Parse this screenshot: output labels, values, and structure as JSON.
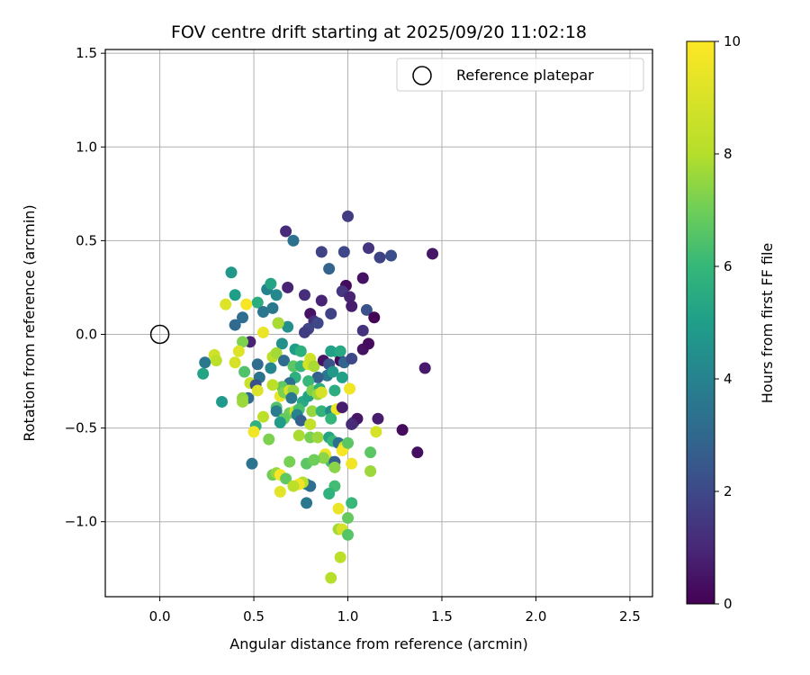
{
  "chart_data": {
    "type": "scatter",
    "title": "FOV centre drift starting at 2025/09/20 11:02:18",
    "xlabel": "Angular distance from reference (arcmin)",
    "ylabel": "Rotation from reference (arcmin)",
    "xlim": [
      -0.29,
      2.62
    ],
    "ylim": [
      -1.4,
      1.52
    ],
    "xticks": [
      0.0,
      0.5,
      1.0,
      1.5,
      2.0,
      2.5
    ],
    "xtick_labels": [
      "0.0",
      "0.5",
      "1.0",
      "1.5",
      "2.0",
      "2.5"
    ],
    "yticks": [
      -1.0,
      -0.5,
      0.0,
      0.5,
      1.0,
      1.5
    ],
    "ytick_labels": [
      "−1.0",
      "−0.5",
      "0.0",
      "0.5",
      "1.0",
      "1.5"
    ],
    "grid": true,
    "legend": {
      "placement": "top-right",
      "entries": [
        "Reference platepar"
      ]
    },
    "reference_point": {
      "x": 0.0,
      "y": 0.0
    },
    "colorbar": {
      "label": "Hours from first FF file",
      "range": [
        0,
        10
      ],
      "ticks": [
        0,
        2,
        4,
        6,
        8,
        10
      ],
      "tick_labels": [
        "0",
        "2",
        "4",
        "6",
        "8",
        "10"
      ],
      "colormap": "viridis"
    },
    "points": [
      [
        1.0,
        0.63,
        1.8
      ],
      [
        0.67,
        0.55,
        1.2
      ],
      [
        0.71,
        0.5,
        3.7
      ],
      [
        0.86,
        0.44,
        2.0
      ],
      [
        0.98,
        0.44,
        2.2
      ],
      [
        1.11,
        0.46,
        1.5
      ],
      [
        1.17,
        0.41,
        2.0
      ],
      [
        1.23,
        0.42,
        2.4
      ],
      [
        1.45,
        0.43,
        0.6
      ],
      [
        0.9,
        0.35,
        3.2
      ],
      [
        1.08,
        0.3,
        0.5
      ],
      [
        0.99,
        0.26,
        0.3
      ],
      [
        0.97,
        0.23,
        1.6
      ],
      [
        1.01,
        0.2,
        1.0
      ],
      [
        0.68,
        0.25,
        1.0
      ],
      [
        0.77,
        0.21,
        1.3
      ],
      [
        0.86,
        0.18,
        1.0
      ],
      [
        1.02,
        0.15,
        0.8
      ],
      [
        1.1,
        0.13,
        2.6
      ],
      [
        1.14,
        0.09,
        0.1
      ],
      [
        0.91,
        0.11,
        2.0
      ],
      [
        0.8,
        0.11,
        0.5
      ],
      [
        0.82,
        0.07,
        1.4
      ],
      [
        0.84,
        0.06,
        2.2
      ],
      [
        0.79,
        0.03,
        2.1
      ],
      [
        0.77,
        0.01,
        1.8
      ],
      [
        1.08,
        0.02,
        1.4
      ],
      [
        0.38,
        0.33,
        5.3
      ],
      [
        0.4,
        0.21,
        5.6
      ],
      [
        0.57,
        0.24,
        4.5
      ],
      [
        0.59,
        0.27,
        5.8
      ],
      [
        0.62,
        0.21,
        4.7
      ],
      [
        0.52,
        0.17,
        6.2
      ],
      [
        0.55,
        0.12,
        3.9
      ],
      [
        0.6,
        0.14,
        4.0
      ],
      [
        0.44,
        0.09,
        3.6
      ],
      [
        0.4,
        0.05,
        3.4
      ],
      [
        0.63,
        0.06,
        4.6
      ],
      [
        0.68,
        0.04,
        5.0
      ],
      [
        0.35,
        0.16,
        9.5
      ],
      [
        0.46,
        0.16,
        9.9
      ],
      [
        0.63,
        0.06,
        8.7
      ],
      [
        0.55,
        0.01,
        9.7
      ],
      [
        0.48,
        -0.04,
        1.0
      ],
      [
        0.44,
        -0.04,
        8.0
      ],
      [
        0.42,
        -0.09,
        9.5
      ],
      [
        0.29,
        -0.11,
        9.3
      ],
      [
        0.3,
        -0.14,
        9.0
      ],
      [
        0.4,
        -0.15,
        9.4
      ],
      [
        0.24,
        -0.15,
        4.0
      ],
      [
        0.23,
        -0.21,
        5.8
      ],
      [
        0.45,
        -0.2,
        7.2
      ],
      [
        0.52,
        -0.16,
        3.5
      ],
      [
        0.59,
        -0.18,
        4.6
      ],
      [
        0.65,
        -0.05,
        5.0
      ],
      [
        0.72,
        -0.08,
        5.5
      ],
      [
        0.75,
        -0.09,
        6.3
      ],
      [
        0.6,
        -0.12,
        9.0
      ],
      [
        0.62,
        -0.1,
        8.6
      ],
      [
        0.66,
        -0.14,
        3.5
      ],
      [
        0.71,
        -0.17,
        7.4
      ],
      [
        0.75,
        -0.17,
        6.6
      ],
      [
        0.79,
        -0.16,
        9.4
      ],
      [
        0.8,
        -0.13,
        9.3
      ],
      [
        0.82,
        -0.17,
        8.7
      ],
      [
        0.87,
        -0.14,
        0.5
      ],
      [
        0.9,
        -0.16,
        2.5
      ],
      [
        0.95,
        -0.1,
        6.5
      ],
      [
        0.96,
        -0.14,
        0.3
      ],
      [
        0.98,
        -0.15,
        3.2
      ],
      [
        1.02,
        -0.13,
        2.2
      ],
      [
        0.91,
        -0.09,
        5.7
      ],
      [
        0.96,
        -0.09,
        6.0
      ],
      [
        1.08,
        -0.08,
        0.5
      ],
      [
        1.11,
        -0.05,
        0.3
      ],
      [
        1.41,
        -0.18,
        0.7
      ],
      [
        0.89,
        -0.22,
        4.0
      ],
      [
        0.92,
        -0.2,
        5.3
      ],
      [
        0.97,
        -0.23,
        5.7
      ],
      [
        0.84,
        -0.23,
        3.0
      ],
      [
        0.79,
        -0.25,
        6.7
      ],
      [
        0.72,
        -0.23,
        6.3
      ],
      [
        0.69,
        -0.26,
        3.7
      ],
      [
        0.65,
        -0.28,
        7.5
      ],
      [
        0.6,
        -0.27,
        9.0
      ],
      [
        0.53,
        -0.23,
        3.8
      ],
      [
        0.48,
        -0.26,
        9.2
      ],
      [
        0.51,
        -0.27,
        2.5
      ],
      [
        0.52,
        -0.3,
        9.5
      ],
      [
        0.64,
        -0.33,
        9.7
      ],
      [
        0.66,
        -0.31,
        8.0
      ],
      [
        0.69,
        -0.3,
        9.4
      ],
      [
        0.71,
        -0.3,
        8.4
      ],
      [
        0.7,
        -0.34,
        4.0
      ],
      [
        0.76,
        -0.36,
        6.0
      ],
      [
        0.79,
        -0.33,
        5.8
      ],
      [
        0.81,
        -0.3,
        8.0
      ],
      [
        0.85,
        -0.29,
        6.2
      ],
      [
        0.84,
        -0.32,
        8.5
      ],
      [
        0.86,
        -0.31,
        9.4
      ],
      [
        0.93,
        -0.3,
        6.2
      ],
      [
        1.01,
        -0.29,
        9.8
      ],
      [
        0.47,
        -0.34,
        3.4
      ],
      [
        0.44,
        -0.34,
        8.3
      ],
      [
        0.44,
        -0.36,
        8.5
      ],
      [
        0.33,
        -0.36,
        5.4
      ],
      [
        0.62,
        -0.39,
        7.2
      ],
      [
        0.62,
        -0.41,
        4.2
      ],
      [
        0.69,
        -0.42,
        7.8
      ],
      [
        0.72,
        -0.41,
        9.2
      ],
      [
        0.74,
        -0.4,
        7.0
      ],
      [
        0.73,
        -0.43,
        4.5
      ],
      [
        0.75,
        -0.46,
        3.0
      ],
      [
        0.81,
        -0.41,
        8.4
      ],
      [
        0.86,
        -0.41,
        6.5
      ],
      [
        0.91,
        -0.41,
        4.8
      ],
      [
        0.94,
        -0.4,
        9.7
      ],
      [
        0.97,
        -0.39,
        0.8
      ],
      [
        0.91,
        -0.45,
        6.6
      ],
      [
        1.03,
        -0.47,
        2.2
      ],
      [
        1.05,
        -0.45,
        0.6
      ],
      [
        1.16,
        -0.45,
        0.8
      ],
      [
        1.29,
        -0.51,
        0.3
      ],
      [
        1.37,
        -0.63,
        0.4
      ],
      [
        1.02,
        -0.48,
        1.2
      ],
      [
        0.66,
        -0.45,
        7.6
      ],
      [
        0.64,
        -0.47,
        5.5
      ],
      [
        0.55,
        -0.44,
        9.0
      ],
      [
        0.51,
        -0.49,
        6.4
      ],
      [
        0.5,
        -0.52,
        9.8
      ],
      [
        0.8,
        -0.48,
        9.1
      ],
      [
        0.74,
        -0.54,
        8.7
      ],
      [
        0.8,
        -0.55,
        7.9
      ],
      [
        0.84,
        -0.55,
        8.5
      ],
      [
        0.9,
        -0.55,
        5.8
      ],
      [
        0.92,
        -0.57,
        6.7
      ],
      [
        0.95,
        -0.58,
        3.6
      ],
      [
        0.98,
        -0.6,
        9.2
      ],
      [
        0.97,
        -0.62,
        9.9
      ],
      [
        1.0,
        -0.58,
        7.4
      ],
      [
        1.15,
        -0.52,
        9.4
      ],
      [
        1.12,
        -0.63,
        7.4
      ],
      [
        0.58,
        -0.56,
        8.0
      ],
      [
        0.91,
        -0.68,
        7.0
      ],
      [
        0.93,
        -0.68,
        3.0
      ],
      [
        0.88,
        -0.64,
        9.7
      ],
      [
        0.87,
        -0.66,
        8.2
      ],
      [
        0.78,
        -0.69,
        7.4
      ],
      [
        0.82,
        -0.67,
        7.8
      ],
      [
        1.02,
        -0.69,
        9.8
      ],
      [
        0.93,
        -0.71,
        8.2
      ],
      [
        0.69,
        -0.68,
        7.9
      ],
      [
        1.12,
        -0.73,
        8.5
      ],
      [
        0.49,
        -0.69,
        3.8
      ],
      [
        0.6,
        -0.75,
        7.8
      ],
      [
        0.62,
        -0.74,
        8.4
      ],
      [
        0.64,
        -0.75,
        9.9
      ],
      [
        0.67,
        -0.77,
        7.5
      ],
      [
        0.78,
        -0.8,
        5.3
      ],
      [
        0.8,
        -0.81,
        3.6
      ],
      [
        0.76,
        -0.79,
        8.9
      ],
      [
        0.74,
        -0.8,
        9.8
      ],
      [
        0.71,
        -0.81,
        9.0
      ],
      [
        0.64,
        -0.84,
        9.6
      ],
      [
        0.93,
        -0.81,
        6.9
      ],
      [
        0.9,
        -0.85,
        6.4
      ],
      [
        1.02,
        -0.9,
        6.7
      ],
      [
        0.95,
        -0.93,
        9.7
      ],
      [
        0.78,
        -0.9,
        4.0
      ],
      [
        1.0,
        -0.98,
        7.6
      ],
      [
        0.95,
        -1.04,
        8.6
      ],
      [
        0.97,
        -1.04,
        9.4
      ],
      [
        1.0,
        -1.07,
        7.3
      ],
      [
        0.96,
        -1.19,
        9.0
      ],
      [
        0.91,
        -1.3,
        8.9
      ]
    ]
  }
}
